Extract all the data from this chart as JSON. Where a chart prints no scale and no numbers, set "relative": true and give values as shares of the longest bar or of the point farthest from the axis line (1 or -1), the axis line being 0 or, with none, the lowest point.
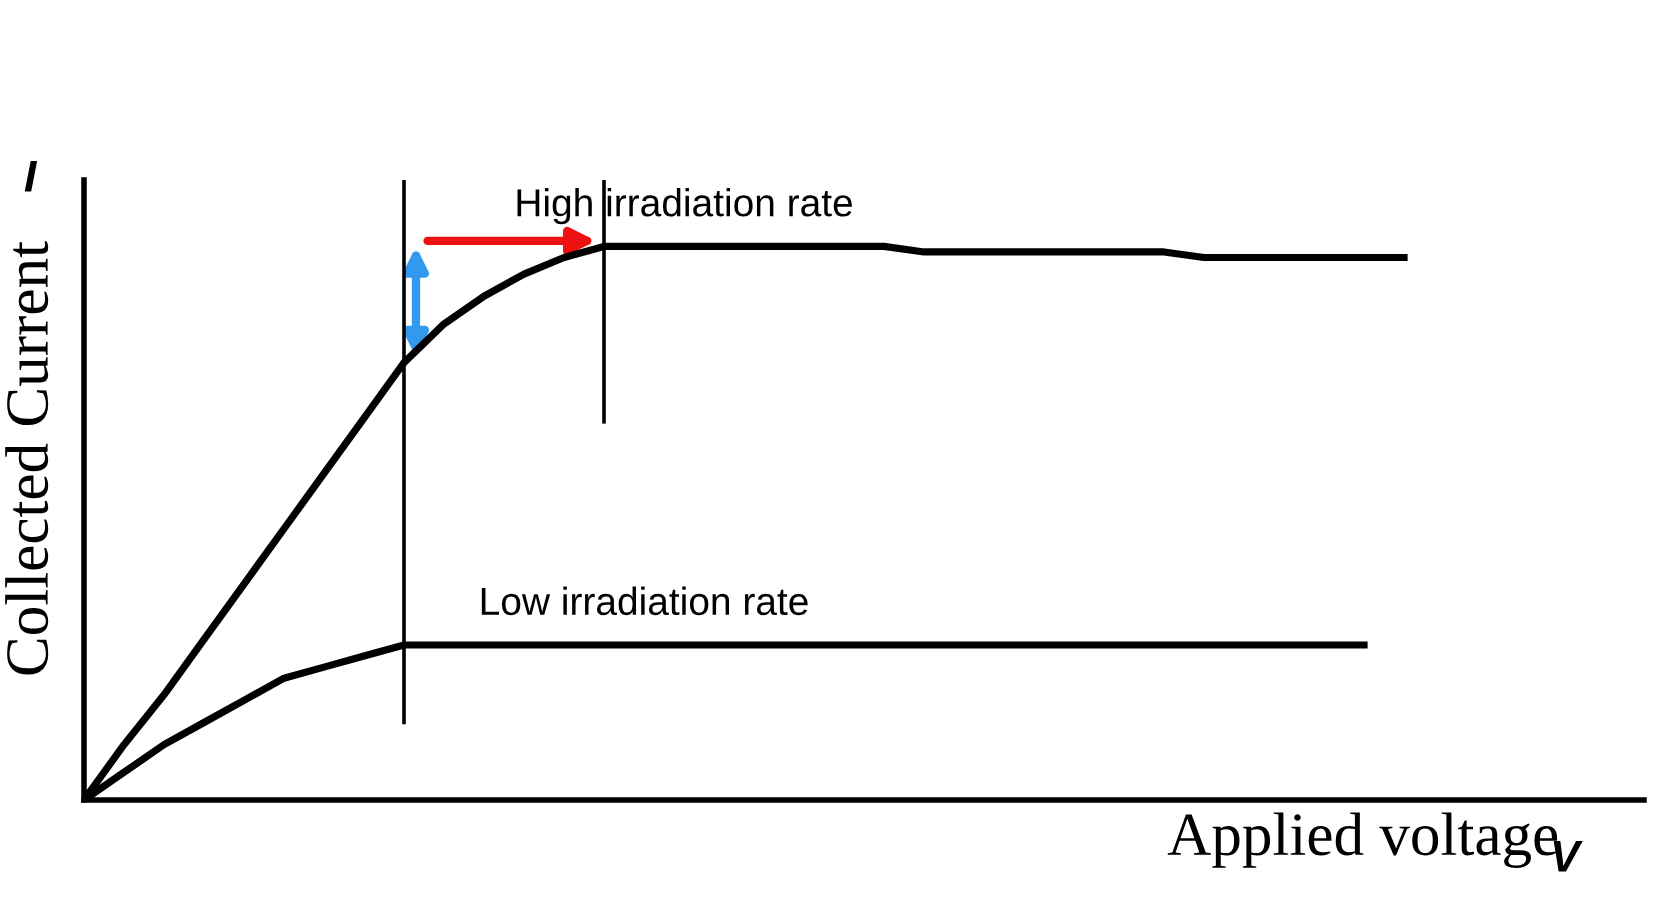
{
  "chart_data": {
    "type": "line",
    "relative": true,
    "xlabel": "Applied voltage",
    "ylabel": "Collected Current",
    "annotations": [
      "I",
      "V"
    ],
    "categories": [
      null,
      null,
      null,
      null,
      null,
      null,
      null,
      null,
      null,
      null,
      null,
      null,
      null,
      null,
      null,
      null,
      null,
      null,
      null,
      null,
      null,
      null,
      null,
      null,
      null,
      null,
      null,
      null,
      null,
      null,
      null,
      null,
      null,
      null
    ],
    "series": [
      {
        "name": "High irradiation rate",
        "color": "#000000",
        "values": [
          0,
          0.1,
          0.19,
          0.29,
          0.39,
          0.49,
          0.59,
          0.69,
          0.79,
          0.86,
          0.91,
          0.95,
          0.98,
          1.0,
          1.0,
          1.0,
          1.0,
          1.0,
          1.0,
          1.0,
          1.0,
          0.99,
          0.99,
          0.99,
          0.99,
          0.99,
          0.99,
          0.99,
          0.98,
          0.98,
          0.98,
          0.98,
          0.98,
          0.98
        ]
      },
      {
        "name": "Low irradiation rate",
        "color": "#000000",
        "values": [
          0,
          0.05,
          0.1,
          0.14,
          0.18,
          0.22,
          0.24,
          0.26,
          0.28,
          0.28,
          0.28,
          0.28,
          0.28,
          0.28,
          0.28,
          0.28,
          0.28,
          0.28,
          0.28,
          0.28,
          0.28,
          0.28,
          0.28,
          0.28,
          0.28,
          0.28,
          0.28,
          0.28,
          0.28,
          0.28,
          0.28,
          0.28,
          0.28,
          null
        ]
      }
    ],
    "legend": false,
    "marker": "none",
    "line_style": "solid"
  }
}
